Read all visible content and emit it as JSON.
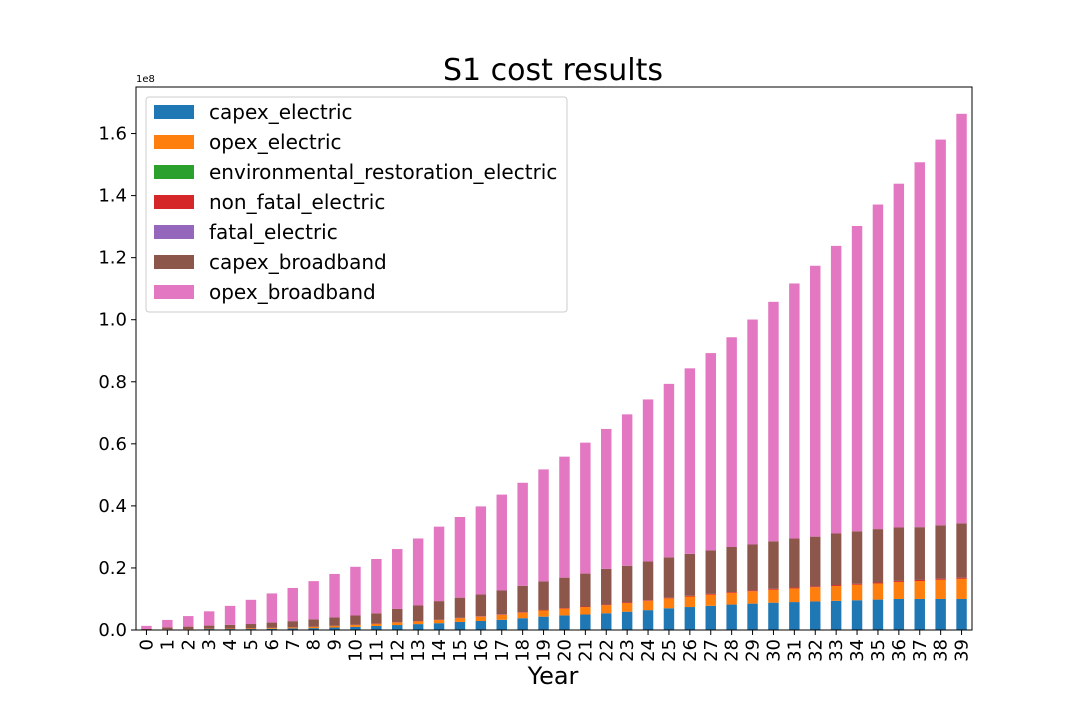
{
  "chart_data": {
    "type": "bar",
    "stacked": true,
    "title": "S1 cost results",
    "xlabel": "Year",
    "ylabel": "",
    "y_scale_label": "1e8",
    "ylim": [
      0,
      1.75
    ],
    "yticks": [
      0.0,
      0.2,
      0.4,
      0.6,
      0.8,
      1.0,
      1.2,
      1.4,
      1.6
    ],
    "ytick_labels": [
      "0.0",
      "0.2",
      "0.4",
      "0.6",
      "0.8",
      "1.0",
      "1.2",
      "1.4",
      "1.6"
    ],
    "legend_position": "top-left",
    "grid": false,
    "categories": [
      "0",
      "1",
      "2",
      "3",
      "4",
      "5",
      "6",
      "7",
      "8",
      "9",
      "10",
      "11",
      "12",
      "13",
      "14",
      "15",
      "16",
      "17",
      "18",
      "19",
      "20",
      "21",
      "22",
      "23",
      "24",
      "25",
      "26",
      "27",
      "28",
      "29",
      "30",
      "31",
      "32",
      "33",
      "34",
      "35",
      "36",
      "37",
      "38",
      "39"
    ],
    "series": [
      {
        "name": "capex_electric",
        "color": "#1f77b4",
        "values": [
          0.001,
          0.002,
          0.002,
          0.003,
          0.003,
          0.003,
          0.004,
          0.005,
          0.006,
          0.008,
          0.01,
          0.013,
          0.016,
          0.019,
          0.022,
          0.026,
          0.029,
          0.033,
          0.038,
          0.043,
          0.047,
          0.05,
          0.054,
          0.059,
          0.064,
          0.07,
          0.074,
          0.078,
          0.082,
          0.085,
          0.088,
          0.09,
          0.092,
          0.094,
          0.096,
          0.098,
          0.1,
          0.1,
          0.1,
          0.1
        ]
      },
      {
        "name": "opex_electric",
        "color": "#ff7f0e",
        "values": [
          0.0002,
          0.0004,
          0.0007,
          0.001,
          0.0015,
          0.002,
          0.0025,
          0.003,
          0.004,
          0.005,
          0.006,
          0.007,
          0.008,
          0.009,
          0.01,
          0.012,
          0.014,
          0.016,
          0.018,
          0.02,
          0.022,
          0.024,
          0.026,
          0.028,
          0.03,
          0.032,
          0.034,
          0.036,
          0.038,
          0.04,
          0.042,
          0.044,
          0.046,
          0.048,
          0.05,
          0.052,
          0.055,
          0.058,
          0.062,
          0.065
        ]
      },
      {
        "name": "environmental_restoration_electric",
        "color": "#2ca02c",
        "values": [
          0,
          0,
          0,
          0,
          0,
          0,
          0,
          0,
          0,
          0,
          0,
          0,
          0,
          0,
          0,
          0,
          0,
          0,
          0,
          0,
          0,
          0,
          0,
          0,
          0,
          0,
          0,
          0,
          0,
          0,
          0,
          0,
          0,
          0,
          0,
          0,
          0,
          0,
          0,
          0
        ]
      },
      {
        "name": "non_fatal_electric",
        "color": "#d62728",
        "values": [
          0.0001,
          0.0001,
          0.0002,
          0.0002,
          0.0003,
          0.0003,
          0.0004,
          0.0005,
          0.0005,
          0.0006,
          0.0007,
          0.0008,
          0.0009,
          0.001,
          0.0011,
          0.0012,
          0.0013,
          0.0014,
          0.0015,
          0.0016,
          0.0017,
          0.0018,
          0.0019,
          0.002,
          0.0021,
          0.0022,
          0.0023,
          0.0024,
          0.0025,
          0.0026,
          0.0027,
          0.0028,
          0.0029,
          0.003,
          0.0031,
          0.0032,
          0.0033,
          0.0034,
          0.0035,
          0.0036
        ]
      },
      {
        "name": "fatal_electric",
        "color": "#9467bd",
        "values": [
          0,
          0,
          0,
          0,
          0,
          0,
          0,
          0,
          0,
          0,
          0,
          0,
          0,
          0,
          0,
          0,
          0,
          0,
          0,
          0,
          0,
          0,
          0,
          0,
          0,
          0,
          0,
          0,
          0,
          0,
          0,
          0,
          0,
          0,
          0,
          0,
          0,
          0,
          0,
          0
        ]
      },
      {
        "name": "capex_broadband",
        "color": "#8c564b",
        "values": [
          0.002,
          0.006,
          0.008,
          0.01,
          0.012,
          0.014,
          0.017,
          0.02,
          0.024,
          0.027,
          0.03,
          0.033,
          0.043,
          0.05,
          0.06,
          0.065,
          0.07,
          0.077,
          0.085,
          0.092,
          0.098,
          0.106,
          0.115,
          0.118,
          0.125,
          0.13,
          0.135,
          0.14,
          0.145,
          0.148,
          0.153,
          0.158,
          0.16,
          0.166,
          0.169,
          0.172,
          0.172,
          0.17,
          0.172,
          0.175
        ]
      },
      {
        "name": "opex_broadband",
        "color": "#e377c2",
        "values": [
          0.01,
          0.024,
          0.034,
          0.046,
          0.061,
          0.078,
          0.094,
          0.107,
          0.123,
          0.14,
          0.157,
          0.175,
          0.193,
          0.216,
          0.24,
          0.26,
          0.284,
          0.309,
          0.332,
          0.361,
          0.39,
          0.422,
          0.451,
          0.488,
          0.522,
          0.559,
          0.598,
          0.636,
          0.676,
          0.725,
          0.772,
          0.822,
          0.873,
          0.927,
          0.984,
          1.046,
          1.108,
          1.176,
          1.243,
          1.32
        ]
      }
    ]
  }
}
